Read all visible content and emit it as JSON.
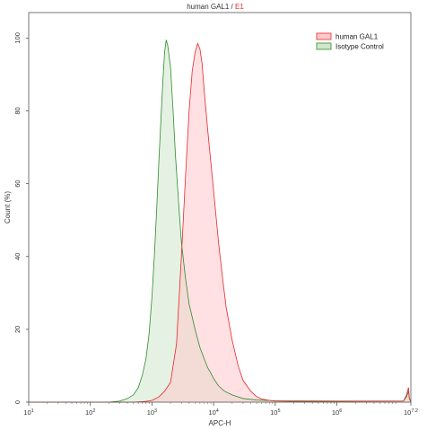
{
  "chart_data": {
    "type": "area",
    "title": {
      "main": "human GAL1",
      "separator": " / ",
      "gate": "E1",
      "main_color": "#333333",
      "gate_color": "#e03030"
    },
    "xlabel": "APC-H",
    "ylabel": "Count (%)",
    "xscale": "log",
    "xlim": [
      10,
      15848931.9
    ],
    "ylim": [
      0,
      107
    ],
    "x_ticks": [
      {
        "value": 10,
        "base": "10",
        "exp": "1"
      },
      {
        "value": 100,
        "base": "10",
        "exp": "2"
      },
      {
        "value": 1000,
        "base": "10",
        "exp": "3"
      },
      {
        "value": 10000,
        "base": "10",
        "exp": "4"
      },
      {
        "value": 100000,
        "base": "10",
        "exp": "5"
      },
      {
        "value": 1000000,
        "base": "10",
        "exp": "6"
      },
      {
        "value": 15848931.9,
        "base": "10",
        "exp": "7.2"
      }
    ],
    "y_ticks": [
      {
        "value": 0,
        "label": "0"
      },
      {
        "value": 20,
        "label": "20"
      },
      {
        "value": 40,
        "label": "40"
      },
      {
        "value": 60,
        "label": "60"
      },
      {
        "value": 80,
        "label": "80"
      },
      {
        "value": 100,
        "label": "100"
      }
    ],
    "legend_position": "top-right",
    "series": [
      {
        "name": "human GAL1",
        "line_color": "#e8262b",
        "fill_color": "#ffc9cc",
        "x": [
          10,
          100,
          500,
          800,
          1000,
          1300,
          1600,
          2000,
          2500,
          3000,
          3500,
          4000,
          4500,
          5000,
          5500,
          6000,
          6500,
          7000,
          8000,
          9000,
          10000,
          12000,
          14000,
          16000,
          20000,
          25000,
          30000,
          40000,
          50000,
          60000,
          80000,
          100000,
          200000,
          1000000,
          12000000,
          13500000,
          14500000,
          15000000,
          15848931.9
        ],
        "y": [
          0,
          0,
          0,
          0.2,
          0.5,
          1.5,
          3,
          5.5,
          16,
          40,
          62,
          80,
          91,
          96,
          98.5,
          97,
          93,
          86,
          75,
          66,
          58,
          44,
          34,
          26,
          17,
          10,
          6,
          3,
          1.5,
          0.9,
          0.5,
          0.3,
          0.2,
          0.2,
          0.3,
          2,
          4,
          1,
          0
        ]
      },
      {
        "name": "Isotype Control",
        "line_color": "#2f8a2f",
        "fill_color": "#cfe8cc",
        "x": [
          10,
          100,
          200,
          300,
          400,
          500,
          600,
          700,
          800,
          900,
          1000,
          1100,
          1200,
          1300,
          1400,
          1500,
          1600,
          1700,
          1800,
          2000,
          2200,
          2400,
          2700,
          3000,
          3500,
          4000,
          5000,
          6000,
          7000,
          8000,
          9000,
          10000,
          12000,
          15000,
          20000,
          30000,
          50000,
          100000,
          1000000,
          12000000,
          13500000,
          14500000,
          15000000,
          15848931.9
        ],
        "y": [
          0,
          0,
          0,
          0.3,
          1,
          2,
          4,
          7.5,
          12,
          19,
          29,
          41,
          54,
          67,
          78,
          88,
          96,
          99.5,
          98,
          92,
          80,
          68,
          55,
          44,
          34,
          27,
          20,
          15,
          12,
          9.5,
          8,
          6.5,
          4.5,
          3,
          2,
          1,
          0.6,
          0.4,
          0.3,
          0.3,
          1.5,
          3,
          1,
          0
        ]
      }
    ]
  }
}
